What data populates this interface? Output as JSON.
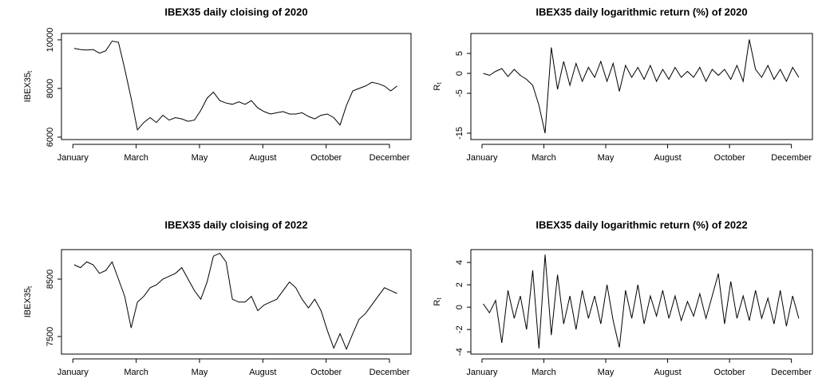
{
  "chart_data": [
    {
      "type": "line",
      "title": "IBEX35 daily cloising of 2020",
      "ylabel": "IBEX35",
      "ylabel_subscript": "t",
      "x": [
        1,
        6,
        11,
        16,
        21,
        26,
        31,
        36,
        41,
        46,
        51,
        56,
        61,
        66,
        71,
        76,
        81,
        86,
        91,
        96,
        101,
        106,
        111,
        116,
        121,
        126,
        131,
        136,
        141,
        146,
        151,
        156,
        161,
        166,
        171,
        176,
        181,
        186,
        191,
        196,
        201,
        206,
        211,
        216,
        221,
        226,
        231,
        236,
        241,
        246,
        251,
        256
      ],
      "series": [
        {
          "name": "IBEX35",
          "color": "#000000",
          "values": [
            9650,
            9600,
            9580,
            9600,
            9450,
            9550,
            9950,
            9900,
            8800,
            7600,
            6300,
            6600,
            6800,
            6600,
            6900,
            6700,
            6800,
            6750,
            6650,
            6700,
            7100,
            7600,
            7850,
            7500,
            7400,
            7350,
            7450,
            7350,
            7500,
            7200,
            7050,
            6950,
            7000,
            7050,
            6950,
            6950,
            7000,
            6850,
            6750,
            6900,
            6950,
            6800,
            6500,
            7300,
            7900,
            8000,
            8100,
            8250,
            8200,
            8100,
            7900,
            8100
          ]
        }
      ],
      "xlim": [
        -9,
        267
      ],
      "xticks": [
        {
          "value": 0,
          "label": "January"
        },
        {
          "value": 50,
          "label": "March"
        },
        {
          "value": 100,
          "label": "May"
        },
        {
          "value": 150,
          "label": "August"
        },
        {
          "value": 200,
          "label": "October"
        },
        {
          "value": 250,
          "label": "December"
        }
      ],
      "ylim": [
        5900,
        10260
      ],
      "yticks": [
        6000,
        8000,
        10000
      ]
    },
    {
      "type": "line",
      "title": "IBEX35 daily logarithmic return (%) of 2020",
      "ylabel": "R",
      "ylabel_subscript": "t",
      "x": [
        1,
        6,
        11,
        16,
        21,
        26,
        31,
        36,
        41,
        46,
        51,
        56,
        61,
        66,
        71,
        76,
        81,
        86,
        91,
        96,
        101,
        106,
        111,
        116,
        121,
        126,
        131,
        136,
        141,
        146,
        151,
        156,
        161,
        166,
        171,
        176,
        181,
        186,
        191,
        196,
        201,
        206,
        211,
        216,
        221,
        226,
        231,
        236,
        241,
        246,
        251,
        256
      ],
      "series": [
        {
          "name": "R",
          "color": "#000000",
          "values": [
            0,
            -0.5,
            0.5,
            1.2,
            -0.8,
            1,
            -0.5,
            -1.5,
            -3,
            -8,
            -15,
            6.5,
            -4,
            3,
            -3,
            2.5,
            -2,
            1.5,
            -1,
            3,
            -2,
            2.5,
            -4.5,
            2,
            -1,
            1.5,
            -1.5,
            2,
            -2,
            1,
            -1.5,
            1.5,
            -1,
            0.5,
            -1,
            1.5,
            -2,
            1,
            -0.5,
            1,
            -1.5,
            2,
            -2,
            8.5,
            1,
            -1,
            2,
            -1.5,
            1,
            -2,
            1.5,
            -1
          ]
        }
      ],
      "xlim": [
        -9,
        267
      ],
      "xticks": [
        {
          "value": 0,
          "label": "January"
        },
        {
          "value": 50,
          "label": "March"
        },
        {
          "value": 100,
          "label": "May"
        },
        {
          "value": 150,
          "label": "August"
        },
        {
          "value": 200,
          "label": "October"
        },
        {
          "value": 250,
          "label": "December"
        }
      ],
      "ylim": [
        -16.6,
        10
      ],
      "yticks": [
        -15,
        -5,
        0,
        5
      ]
    },
    {
      "type": "line",
      "title": "IBEX35 daily cloising of 2022",
      "ylabel": "IBEX35",
      "ylabel_subscript": "t",
      "x": [
        1,
        6,
        11,
        16,
        21,
        26,
        31,
        36,
        41,
        46,
        51,
        56,
        61,
        66,
        71,
        76,
        81,
        86,
        91,
        96,
        101,
        106,
        111,
        116,
        121,
        126,
        131,
        136,
        141,
        146,
        151,
        156,
        161,
        166,
        171,
        176,
        181,
        186,
        191,
        196,
        201,
        206,
        211,
        216,
        221,
        226,
        231,
        236,
        241,
        246,
        251,
        256
      ],
      "series": [
        {
          "name": "IBEX35",
          "color": "#000000",
          "values": [
            8750,
            8700,
            8800,
            8750,
            8600,
            8650,
            8800,
            8500,
            8200,
            7650,
            8100,
            8200,
            8350,
            8400,
            8500,
            8550,
            8600,
            8700,
            8500,
            8300,
            8150,
            8450,
            8900,
            8950,
            8800,
            8150,
            8100,
            8100,
            8200,
            7950,
            8050,
            8100,
            8150,
            8300,
            8450,
            8350,
            8150,
            8000,
            8150,
            7950,
            7600,
            7300,
            7550,
            7280,
            7550,
            7800,
            7900,
            8050,
            8200,
            8350,
            8300,
            8250
          ]
        }
      ],
      "xlim": [
        -9,
        267
      ],
      "xticks": [
        {
          "value": 0,
          "label": "January"
        },
        {
          "value": 50,
          "label": "March"
        },
        {
          "value": 100,
          "label": "May"
        },
        {
          "value": 150,
          "label": "August"
        },
        {
          "value": 200,
          "label": "October"
        },
        {
          "value": 250,
          "label": "December"
        }
      ],
      "ylim": [
        7194,
        9014
      ],
      "yticks": [
        7500,
        8500
      ]
    },
    {
      "type": "line",
      "title": "IBEX35 daily logarithmic return (%) of 2022",
      "ylabel": "R",
      "ylabel_subscript": "t",
      "x": [
        1,
        6,
        11,
        16,
        21,
        26,
        31,
        36,
        41,
        46,
        51,
        56,
        61,
        66,
        71,
        76,
        81,
        86,
        91,
        96,
        101,
        106,
        111,
        116,
        121,
        126,
        131,
        136,
        141,
        146,
        151,
        156,
        161,
        166,
        171,
        176,
        181,
        186,
        191,
        196,
        201,
        206,
        211,
        216,
        221,
        226,
        231,
        236,
        241,
        246,
        251,
        256
      ],
      "series": [
        {
          "name": "R",
          "color": "#000000",
          "values": [
            0.3,
            -0.5,
            0.6,
            -3.2,
            1.5,
            -1,
            1,
            -2,
            3.3,
            -3.7,
            4.7,
            -2.5,
            2.9,
            -1.5,
            1,
            -2,
            1.5,
            -1,
            1,
            -1.5,
            2,
            -1.2,
            -3.6,
            1.5,
            -1,
            2,
            -1.5,
            1,
            -0.8,
            1.5,
            -1,
            1,
            -1.2,
            0.5,
            -0.8,
            1.2,
            -1,
            1,
            3,
            -1.5,
            2.3,
            -1,
            1,
            -1.2,
            1.5,
            -1,
            0.8,
            -1.5,
            1.5,
            -1.7,
            1,
            -1
          ]
        }
      ],
      "xlim": [
        -9,
        267
      ],
      "xticks": [
        {
          "value": 0,
          "label": "January"
        },
        {
          "value": 50,
          "label": "March"
        },
        {
          "value": 100,
          "label": "May"
        },
        {
          "value": 150,
          "label": "August"
        },
        {
          "value": 200,
          "label": "October"
        },
        {
          "value": 250,
          "label": "December"
        }
      ],
      "ylim": [
        -4.2,
        5.15
      ],
      "yticks": [
        -4,
        -2,
        0,
        2,
        4
      ]
    }
  ]
}
